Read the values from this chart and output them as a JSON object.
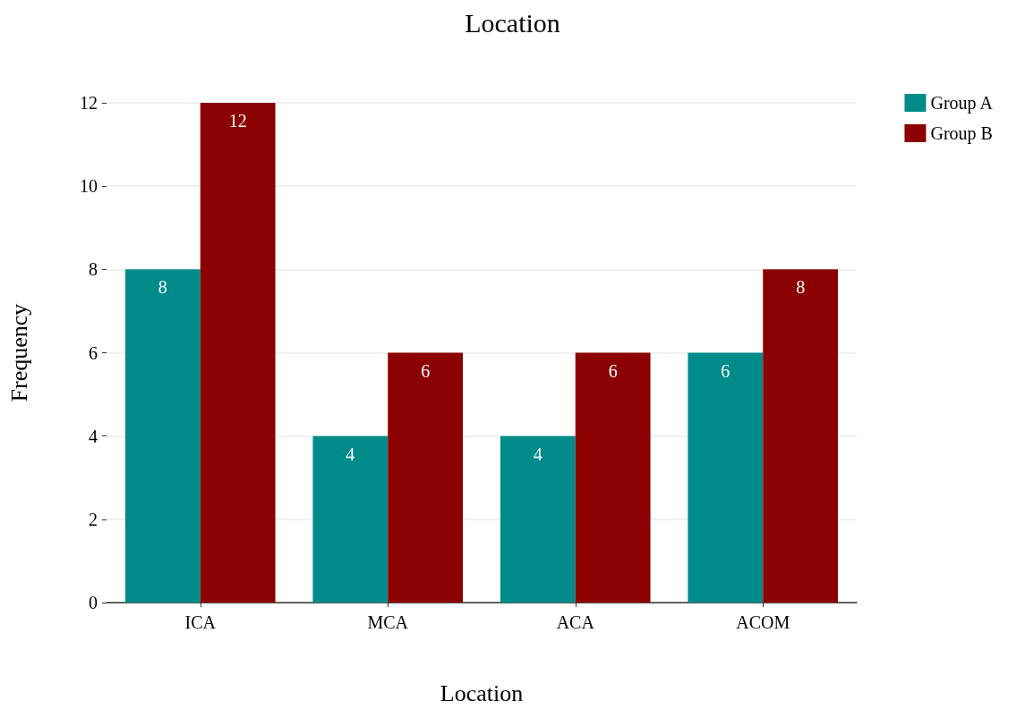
{
  "chart_data": {
    "type": "bar",
    "title": "Location",
    "xlabel": "Location",
    "ylabel": "Frequency",
    "categories": [
      "ICA",
      "MCA",
      "ACA",
      "ACOM"
    ],
    "series": [
      {
        "name": "Group A",
        "color": "#008b8b",
        "values": [
          8,
          4,
          4,
          6
        ]
      },
      {
        "name": "Group B",
        "color": "#8b0000",
        "values": [
          12,
          6,
          6,
          8
        ]
      }
    ],
    "ylim": [
      0,
      12
    ],
    "yticks": [
      0,
      2,
      4,
      6,
      8,
      10,
      12
    ],
    "grid": "y",
    "legend": "top right",
    "data_labels": true
  }
}
